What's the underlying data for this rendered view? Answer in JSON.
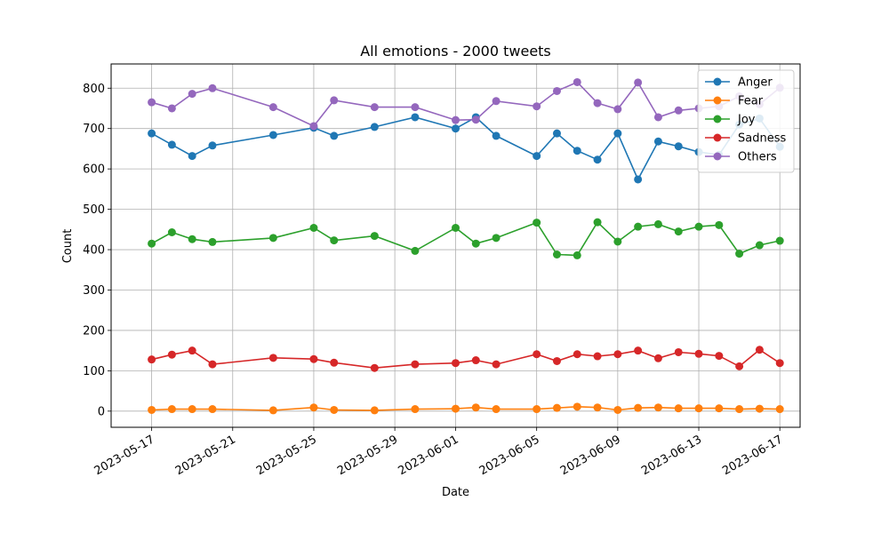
{
  "chart_data": {
    "type": "line",
    "title": "All emotions - 2000 tweets",
    "xlabel": "Date",
    "ylabel": "Count",
    "xlim": [
      "2023-05-15",
      "2023-06-18"
    ],
    "ylim": [
      -40,
      860
    ],
    "grid": true,
    "legend_position": "top-right",
    "x_ticks": [
      "2023-05-17",
      "2023-05-21",
      "2023-05-25",
      "2023-05-29",
      "2023-06-01",
      "2023-06-05",
      "2023-06-09",
      "2023-06-13",
      "2023-06-17"
    ],
    "y_ticks": [
      0,
      100,
      200,
      300,
      400,
      500,
      600,
      700,
      800
    ],
    "x": [
      "2023-05-17",
      "2023-05-18",
      "2023-05-19",
      "2023-05-20",
      "2023-05-23",
      "2023-05-25",
      "2023-05-26",
      "2023-05-28",
      "2023-05-30",
      "2023-06-01",
      "2023-06-02",
      "2023-06-03",
      "2023-06-05",
      "2023-06-06",
      "2023-06-07",
      "2023-06-08",
      "2023-06-09",
      "2023-06-10",
      "2023-06-11",
      "2023-06-12",
      "2023-06-13",
      "2023-06-14",
      "2023-06-15",
      "2023-06-16",
      "2023-06-17"
    ],
    "series": [
      {
        "name": "Anger",
        "color": "#1f77b4",
        "values": [
          688,
          660,
          632,
          658,
          684,
          702,
          682,
          704,
          728,
          700,
          728,
          682,
          632,
          688,
          645,
          623,
          688,
          574,
          668,
          656,
          642,
          635,
          710,
          725,
          655
        ]
      },
      {
        "name": "Fear",
        "color": "#ff7f0e",
        "values": [
          3,
          5,
          5,
          5,
          2,
          9,
          3,
          2,
          5,
          6,
          9,
          5,
          5,
          8,
          11,
          9,
          3,
          8,
          9,
          7,
          7,
          7,
          5,
          6,
          5
        ]
      },
      {
        "name": "Joy",
        "color": "#2ca02c",
        "values": [
          415,
          443,
          426,
          419,
          429,
          454,
          423,
          434,
          397,
          454,
          415,
          429,
          467,
          388,
          386,
          468,
          420,
          457,
          463,
          445,
          457,
          461,
          390,
          411,
          422
        ]
      },
      {
        "name": "Sadness",
        "color": "#d62728",
        "values": [
          128,
          140,
          150,
          116,
          132,
          129,
          120,
          107,
          116,
          119,
          126,
          116,
          141,
          124,
          141,
          136,
          141,
          150,
          131,
          146,
          142,
          137,
          111,
          152,
          119
        ]
      },
      {
        "name": "Others",
        "color": "#9467bd",
        "values": [
          765,
          750,
          786,
          800,
          753,
          706,
          770,
          753,
          753,
          721,
          722,
          768,
          755,
          793,
          815,
          763,
          748,
          814,
          728,
          745,
          750,
          755,
          780,
          760,
          801
        ]
      }
    ]
  }
}
